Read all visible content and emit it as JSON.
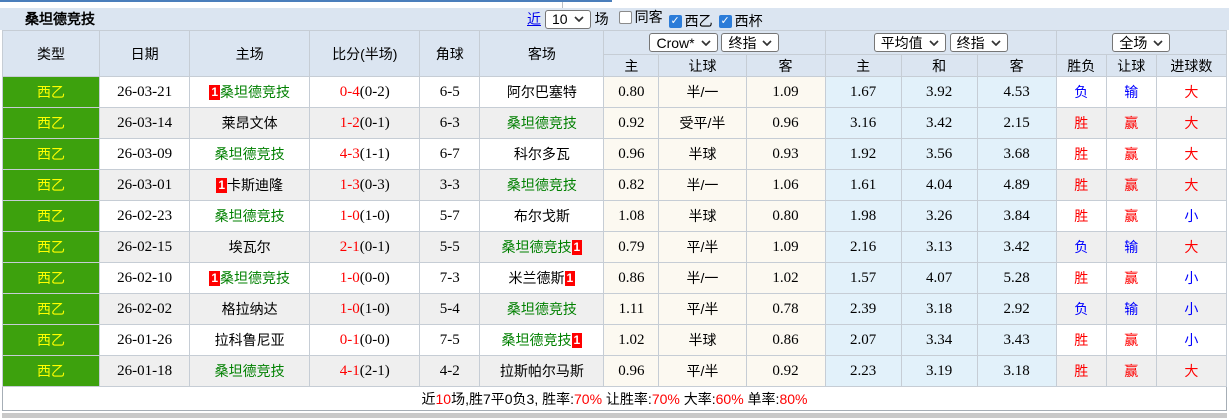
{
  "title": "桑坦德竞技",
  "toolbar": {
    "recent_label": "近",
    "match_count": "10",
    "games_label": "场",
    "filters": [
      {
        "label": "同客",
        "checked": false
      },
      {
        "label": "西乙",
        "checked": true
      },
      {
        "label": "西杯",
        "checked": true
      }
    ]
  },
  "table": {
    "headers": {
      "type": "类型",
      "date": "日期",
      "home": "主场",
      "score": "比分(半场)",
      "corner": "角球",
      "away": "客场",
      "odds_company": "Crow*",
      "odds_stage": "终指",
      "avg_company": "平均值",
      "avg_stage": "终指",
      "result_scope": "全场",
      "sub": {
        "odds_home": "主",
        "odds_line": "让球",
        "odds_away": "客",
        "avg_home": "主",
        "avg_draw": "和",
        "avg_away": "客",
        "result_wdl": "胜负",
        "result_handicap": "让球",
        "result_goals": "进球数"
      }
    },
    "rows": [
      {
        "league": "西乙",
        "date": "26-03-21",
        "home": "桑坦德竞技",
        "home_badge": "1",
        "home_self": true,
        "score_ft": "0-4",
        "score_ht": "(0-2)",
        "corner": "6-5",
        "away": "阿尔巴塞特",
        "away_badge": "",
        "away_self": false,
        "odds": [
          "0.80",
          "半/一",
          "1.09"
        ],
        "avg": [
          "1.67",
          "3.92",
          "4.53"
        ],
        "results": [
          "负",
          "输",
          "大"
        ]
      },
      {
        "league": "西乙",
        "date": "26-03-14",
        "home": "莱昂文体",
        "home_badge": "",
        "home_self": false,
        "score_ft": "1-2",
        "score_ht": "(0-1)",
        "corner": "6-3",
        "away": "桑坦德竞技",
        "away_badge": "",
        "away_self": true,
        "odds": [
          "0.92",
          "受平/半",
          "0.96"
        ],
        "avg": [
          "3.16",
          "3.42",
          "2.15"
        ],
        "results": [
          "胜",
          "赢",
          "大"
        ]
      },
      {
        "league": "西乙",
        "date": "26-03-09",
        "home": "桑坦德竞技",
        "home_badge": "",
        "home_self": true,
        "score_ft": "4-3",
        "score_ht": "(1-1)",
        "corner": "6-7",
        "away": "科尔多瓦",
        "away_badge": "",
        "away_self": false,
        "odds": [
          "0.96",
          "半球",
          "0.93"
        ],
        "avg": [
          "1.92",
          "3.56",
          "3.68"
        ],
        "results": [
          "胜",
          "赢",
          "大"
        ]
      },
      {
        "league": "西乙",
        "date": "26-03-01",
        "home": "卡斯迪隆",
        "home_badge": "1",
        "home_self": false,
        "score_ft": "1-3",
        "score_ht": "(0-3)",
        "corner": "3-3",
        "away": "桑坦德竞技",
        "away_badge": "",
        "away_self": true,
        "odds": [
          "0.82",
          "半/一",
          "1.06"
        ],
        "avg": [
          "1.61",
          "4.04",
          "4.89"
        ],
        "results": [
          "胜",
          "赢",
          "大"
        ]
      },
      {
        "league": "西乙",
        "date": "26-02-23",
        "home": "桑坦德竞技",
        "home_badge": "",
        "home_self": true,
        "score_ft": "1-0",
        "score_ht": "(1-0)",
        "corner": "5-7",
        "away": "布尔戈斯",
        "away_badge": "",
        "away_self": false,
        "odds": [
          "1.08",
          "半球",
          "0.80"
        ],
        "avg": [
          "1.98",
          "3.26",
          "3.84"
        ],
        "results": [
          "胜",
          "赢",
          "小"
        ]
      },
      {
        "league": "西乙",
        "date": "26-02-15",
        "home": "埃瓦尔",
        "home_badge": "",
        "home_self": false,
        "score_ft": "2-1",
        "score_ht": "(0-1)",
        "corner": "5-5",
        "away": "桑坦德竞技",
        "away_badge": "1",
        "away_self": true,
        "odds": [
          "0.79",
          "平/半",
          "1.09"
        ],
        "avg": [
          "2.16",
          "3.13",
          "3.42"
        ],
        "results": [
          "负",
          "输",
          "大"
        ]
      },
      {
        "league": "西乙",
        "date": "26-02-10",
        "home": "桑坦德竞技",
        "home_badge": "1",
        "home_self": true,
        "score_ft": "1-0",
        "score_ht": "(0-0)",
        "corner": "7-3",
        "away": "米兰德斯",
        "away_badge": "1",
        "away_self": false,
        "odds": [
          "0.86",
          "半/一",
          "1.02"
        ],
        "avg": [
          "1.57",
          "4.07",
          "5.28"
        ],
        "results": [
          "胜",
          "赢",
          "小"
        ]
      },
      {
        "league": "西乙",
        "date": "26-02-02",
        "home": "格拉纳达",
        "home_badge": "",
        "home_self": false,
        "score_ft": "1-0",
        "score_ht": "(1-0)",
        "corner": "5-4",
        "away": "桑坦德竞技",
        "away_badge": "",
        "away_self": true,
        "odds": [
          "1.11",
          "平/半",
          "0.78"
        ],
        "avg": [
          "2.39",
          "3.18",
          "2.92"
        ],
        "results": [
          "负",
          "输",
          "小"
        ]
      },
      {
        "league": "西乙",
        "date": "26-01-26",
        "home": "拉科鲁尼亚",
        "home_badge": "",
        "home_self": false,
        "score_ft": "0-1",
        "score_ht": "(0-0)",
        "corner": "7-5",
        "away": "桑坦德竞技",
        "away_badge": "1",
        "away_self": true,
        "odds": [
          "1.02",
          "半球",
          "0.86"
        ],
        "avg": [
          "2.07",
          "3.34",
          "3.43"
        ],
        "results": [
          "胜",
          "赢",
          "小"
        ]
      },
      {
        "league": "西乙",
        "date": "26-01-18",
        "home": "桑坦德竞技",
        "home_badge": "",
        "home_self": true,
        "score_ft": "4-1",
        "score_ht": "(2-1)",
        "corner": "4-2",
        "away": "拉斯帕尔马斯",
        "away_badge": "",
        "away_self": false,
        "odds": [
          "0.96",
          "平/半",
          "0.92"
        ],
        "avg": [
          "2.23",
          "3.19",
          "3.18"
        ],
        "results": [
          "胜",
          "赢",
          "大"
        ]
      }
    ]
  },
  "footer": {
    "segments": [
      {
        "text": "近",
        "red": false
      },
      {
        "text": "10",
        "red": true
      },
      {
        "text": "场,胜7平0负3, 胜率:",
        "red": false
      },
      {
        "text": "70%",
        "red": true
      },
      {
        "text": " 让胜率:",
        "red": false
      },
      {
        "text": "70%",
        "red": true
      },
      {
        "text": " 大率:",
        "red": false
      },
      {
        "text": "60%",
        "red": true
      },
      {
        "text": " 单率:",
        "red": false
      },
      {
        "text": "80%",
        "red": true
      }
    ]
  },
  "colors": {
    "panel_bg": "#dbe5f1",
    "type_bg": "#3da10d",
    "type_text": "#ffff00",
    "self_team": "#008000",
    "red": "#ff0000",
    "blue": "#0000ff",
    "odds_bg": "#fcf9f1",
    "avg_bg": "#e2f1fa",
    "topline": "#4a7ebb"
  }
}
